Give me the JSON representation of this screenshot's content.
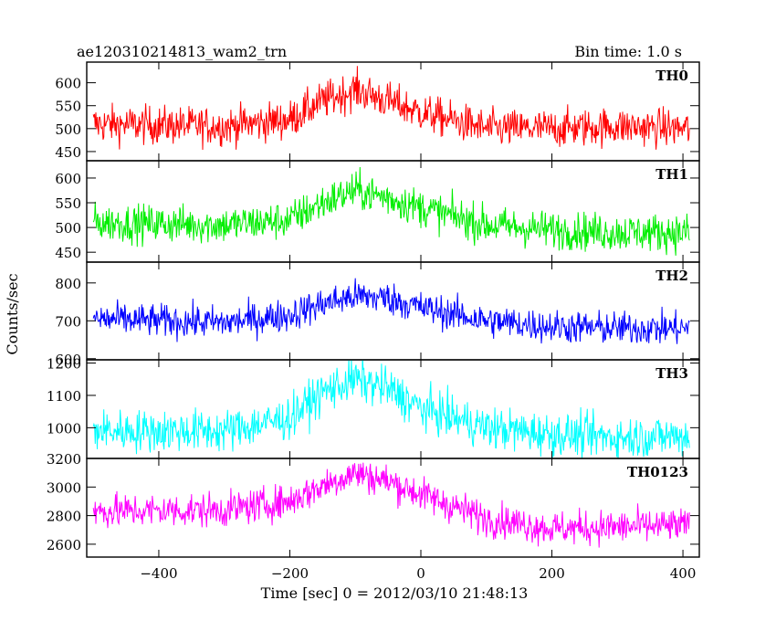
{
  "header": {
    "title": "ae120310214813_wam2_trn",
    "bin_time": "Bin time: 1.0 s"
  },
  "axes": {
    "xlabel": "Time [sec] 0 = 2012/03/10 21:48:13",
    "ylabel": "Counts/sec"
  },
  "chart_data": {
    "type": "line",
    "title": "ae120310214813_wam2_trn",
    "xlabel": "Time [sec] 0 = 2012/03/10 21:48:13",
    "ylabel": "Counts/sec",
    "xlim": [
      -510,
      425
    ],
    "x_ticks": [
      -400,
      -200,
      0,
      200,
      400
    ],
    "grid": false,
    "series": [
      {
        "name": "TH0",
        "color": "#ff0000",
        "ylim": [
          430,
          645
        ],
        "y_ticks": [
          450,
          500,
          550,
          600
        ],
        "approx_profile": {
          "x": [
            -500,
            -300,
            -200,
            -150,
            -100,
            -50,
            0,
            100,
            200,
            300,
            410
          ],
          "y": [
            510,
            505,
            520,
            560,
            585,
            560,
            535,
            500,
            500,
            505,
            500
          ]
        },
        "noise": 38
      },
      {
        "name": "TH1",
        "color": "#00ee00",
        "ylim": [
          430,
          635
        ],
        "y_ticks": [
          450,
          500,
          550,
          600
        ],
        "approx_profile": {
          "x": [
            -500,
            -300,
            -200,
            -150,
            -100,
            -50,
            0,
            100,
            200,
            300,
            410
          ],
          "y": [
            510,
            505,
            515,
            550,
            575,
            560,
            540,
            505,
            495,
            490,
            490
          ]
        },
        "noise": 35
      },
      {
        "name": "TH2",
        "color": "#0000ff",
        "ylim": [
          597,
          855
        ],
        "y_ticks": [
          600,
          700,
          800
        ],
        "approx_profile": {
          "x": [
            -500,
            -300,
            -200,
            -150,
            -100,
            -50,
            0,
            100,
            200,
            300,
            410
          ],
          "y": [
            705,
            695,
            715,
            745,
            765,
            760,
            735,
            700,
            685,
            680,
            680
          ]
        },
        "noise": 40
      },
      {
        "name": "TH3",
        "color": "#00ffff",
        "ylim": [
          905,
          1210
        ],
        "y_ticks": [
          1000,
          1100,
          1200
        ],
        "approx_profile": {
          "x": [
            -500,
            -300,
            -200,
            -150,
            -100,
            -50,
            0,
            100,
            200,
            300,
            410
          ],
          "y": [
            990,
            990,
            1030,
            1110,
            1150,
            1120,
            1060,
            1000,
            980,
            970,
            975
          ]
        },
        "noise": 60
      },
      {
        "name": "TH0123",
        "color": "#ff00ff",
        "ylim": [
          2510,
          3200
        ],
        "y_ticks": [
          2600,
          2800,
          3000,
          3200
        ],
        "approx_profile": {
          "x": [
            -500,
            -300,
            -200,
            -150,
            -100,
            -50,
            0,
            100,
            200,
            300,
            410
          ],
          "y": [
            2830,
            2840,
            2900,
            3010,
            3100,
            3040,
            2950,
            2780,
            2710,
            2720,
            2730
          ]
        },
        "noise": 110
      }
    ]
  }
}
